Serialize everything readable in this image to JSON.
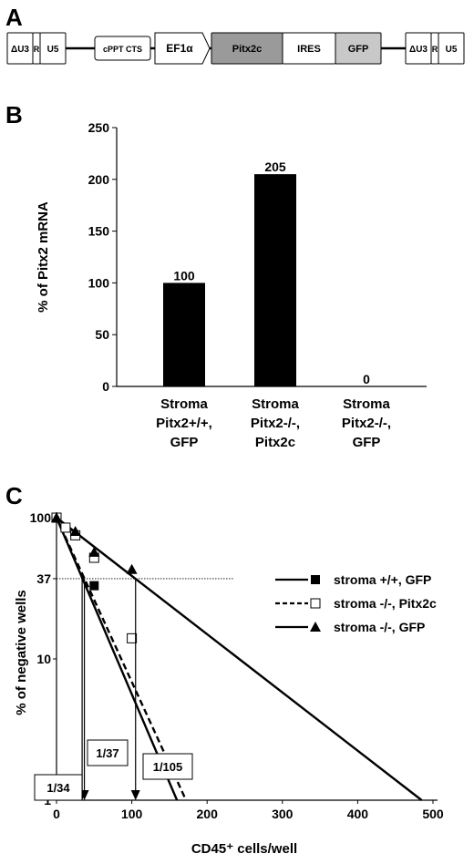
{
  "panels": {
    "a": "A",
    "b": "B",
    "c": "C"
  },
  "construct": {
    "segments": [
      {
        "label": "ΔU3",
        "fill": "#ffffff"
      },
      {
        "label": "R",
        "fill": "#ffffff"
      },
      {
        "label": "U5",
        "fill": "#ffffff"
      },
      {
        "label": "cPPT CTS",
        "fill": "#ffffff"
      },
      {
        "label": "EF1α",
        "fill": "#ffffff"
      },
      {
        "label": "Pitx2c",
        "fill": "#9a9a9a"
      },
      {
        "label": "IRES",
        "fill": "#ffffff"
      },
      {
        "label": "GFP",
        "fill": "#c8c8c8"
      },
      {
        "label": "ΔU3",
        "fill": "#ffffff"
      },
      {
        "label": "R",
        "fill": "#ffffff"
      },
      {
        "label": "U5",
        "fill": "#ffffff"
      }
    ]
  },
  "chart_data": [
    {
      "type": "bar",
      "categories": [
        [
          "Stroma",
          "Pitx2+/+,",
          "GFP"
        ],
        [
          "Stroma",
          "Pitx2-/-,",
          "Pitx2c"
        ],
        [
          "Stroma",
          "Pitx2-/-,",
          "GFP"
        ]
      ],
      "values": [
        100,
        205,
        0
      ],
      "data_labels": [
        "100",
        "205",
        "0"
      ],
      "ylabel": "% of Pitx2 mRNA",
      "ylim": [
        0,
        250
      ],
      "yticks": [
        "0",
        "50",
        "100",
        "150",
        "200",
        "250"
      ],
      "bar_color": "#000000"
    },
    {
      "type": "line",
      "title": "",
      "xlabel": "CD45⁺ cells/well",
      "ylabel": "% of negative wells",
      "xlim": [
        0,
        500
      ],
      "xticks": [
        "0",
        "100",
        "200",
        "300",
        "400",
        "500"
      ],
      "ylim": [
        1,
        100
      ],
      "yscale": "log",
      "yticks": [
        "1",
        "10",
        "37",
        "100"
      ],
      "reference_line_y": 37,
      "series": [
        {
          "name": "stroma +/+, GFP",
          "marker": "filled-square",
          "line": "solid",
          "points": [
            [
              0,
              100
            ],
            [
              25,
              75
            ],
            [
              50,
              33
            ]
          ],
          "fit": [
            [
              0,
              100
            ],
            [
              160,
              1
            ]
          ],
          "estimate_x": 34,
          "estimate_label": "1/34"
        },
        {
          "name": "stroma -/-, Pitx2c",
          "marker": "open-square",
          "line": "dashed",
          "points": [
            [
              0,
              100
            ],
            [
              12,
              85
            ],
            [
              25,
              75
            ],
            [
              50,
              52
            ],
            [
              100,
              14
            ]
          ],
          "fit": [
            [
              0,
              100
            ],
            [
              172,
              1
            ]
          ],
          "estimate_x": 37,
          "estimate_label": "1/37"
        },
        {
          "name": "stroma -/-, GFP",
          "marker": "filled-triangle",
          "line": "solid",
          "points": [
            [
              0,
              100
            ],
            [
              25,
              80
            ],
            [
              50,
              57
            ],
            [
              100,
              43
            ]
          ],
          "fit": [
            [
              0,
              100
            ],
            [
              485,
              1
            ]
          ],
          "estimate_x": 105,
          "estimate_label": "1/105"
        }
      ],
      "legend_position": "right"
    }
  ]
}
